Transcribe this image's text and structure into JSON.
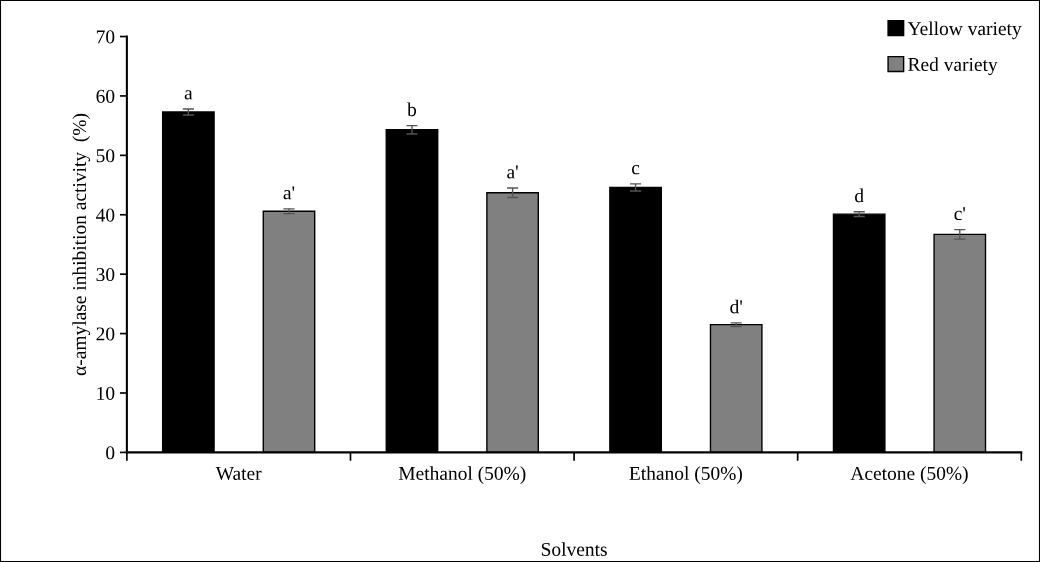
{
  "chart_data": {
    "type": "bar",
    "xlabel": "Solvents",
    "ylabel": "α-amylase inhibition activity  (%)",
    "categories": [
      "Water",
      "Methanol (50%)",
      "Ethanol (50%)",
      "Acetone (50%)"
    ],
    "series": [
      {
        "name": "Yellow variety",
        "color": "#000000",
        "values": [
          57.3,
          54.3,
          44.6,
          40.1
        ],
        "errors": [
          0.5,
          0.7,
          0.6,
          0.4
        ],
        "value_labels": [
          "a",
          "b",
          "c",
          "d"
        ]
      },
      {
        "name": "Red variety",
        "color": "#808080",
        "values": [
          40.6,
          43.7,
          21.5,
          36.7
        ],
        "errors": [
          0.4,
          0.8,
          0.3,
          0.8
        ],
        "value_labels": [
          "a'",
          "a'",
          "d'",
          "c'"
        ]
      }
    ],
    "ylim": [
      0,
      70
    ],
    "yticks": [
      0,
      10,
      20,
      30,
      40,
      50,
      60,
      70
    ],
    "grid": false,
    "legend": "top right"
  }
}
